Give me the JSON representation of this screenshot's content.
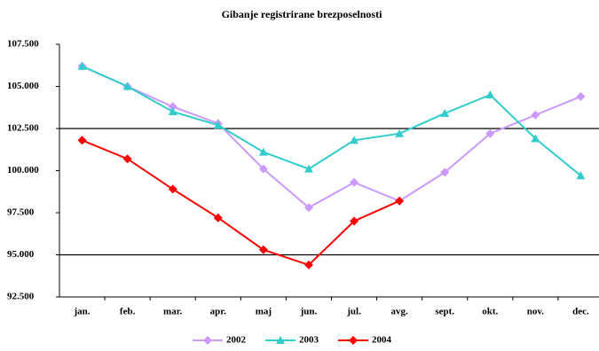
{
  "chart_data": {
    "type": "line",
    "title": "Gibanje registrirane brezposelnosti",
    "categories": [
      "jan.",
      "feb.",
      "mar.",
      "apr.",
      "maj",
      "jun.",
      "jul.",
      "avg.",
      "sept.",
      "okt.",
      "nov.",
      "dec."
    ],
    "ylim": [
      92500,
      107500
    ],
    "yticks": [
      {
        "value": 92500,
        "label": "92.500"
      },
      {
        "value": 95000,
        "label": "95.000"
      },
      {
        "value": 97500,
        "label": "97.500"
      },
      {
        "value": 100000,
        "label": "100.000"
      },
      {
        "value": 102500,
        "label": "102.500"
      },
      {
        "value": 105000,
        "label": "105.000"
      },
      {
        "value": 107500,
        "label": "107.500"
      }
    ],
    "grid_lines": [
      95000,
      102500
    ],
    "legend": "bottom",
    "series": [
      {
        "name": "2002",
        "color": "#cc99ff",
        "marker": "diamond",
        "values": [
          106200,
          105000,
          103800,
          102800,
          100100,
          97800,
          99300,
          98200,
          99900,
          102200,
          103300,
          104400
        ]
      },
      {
        "name": "2003",
        "color": "#33cccc",
        "marker": "triangle",
        "values": [
          106200,
          105000,
          103500,
          102700,
          101100,
          100100,
          101800,
          102200,
          103400,
          104500,
          101900,
          99700
        ]
      },
      {
        "name": "2004",
        "color": "#ff0000",
        "marker": "diamond",
        "values": [
          101800,
          100700,
          98900,
          97200,
          95300,
          94400,
          97000,
          98200,
          null,
          null,
          null,
          null
        ]
      }
    ]
  }
}
